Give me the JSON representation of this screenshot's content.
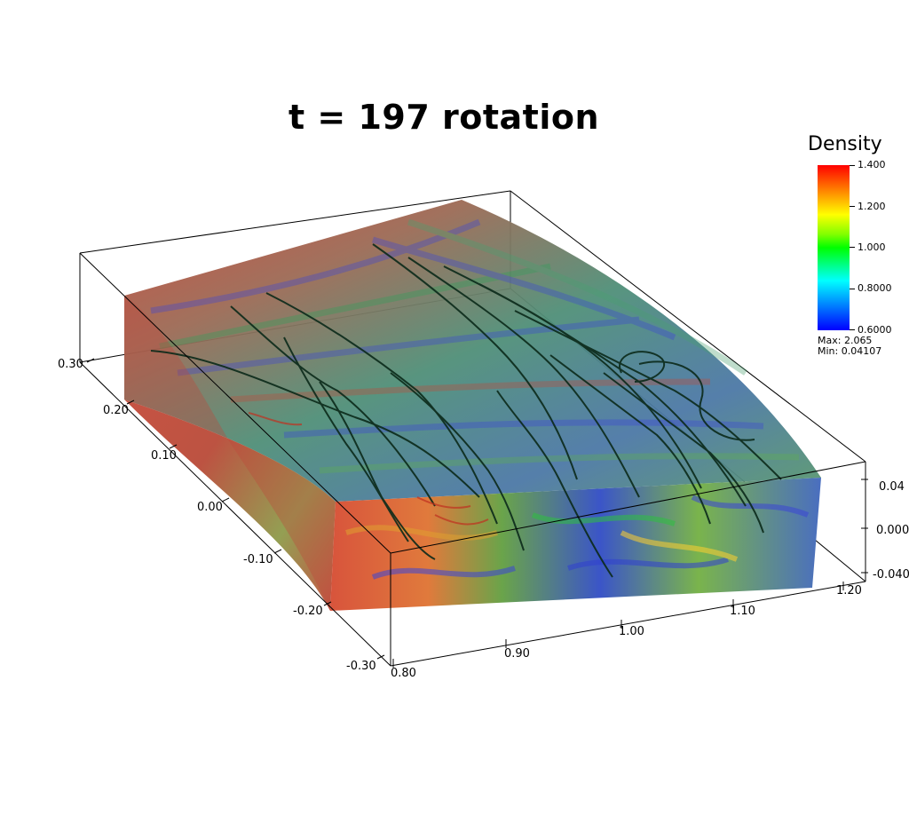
{
  "title": "t = 197 rotation",
  "legend": {
    "title": "Density",
    "ticks": [
      "1.400",
      "1.200",
      "1.000",
      "0.8000",
      "0.6000"
    ],
    "max_label": "Max: 2.065",
    "min_label": "Min: 0.04107"
  },
  "axes": {
    "y_ticks": [
      "0.30",
      "0.20",
      "0.10",
      "0.00",
      "-0.10",
      "-0.20",
      "-0.30"
    ],
    "x_ticks": [
      "0.80",
      "0.90",
      "1.00",
      "1.10",
      "1.20"
    ],
    "z_ticks": [
      "0.04",
      "0.000",
      "-0.040"
    ]
  },
  "colors": {
    "red": "#d63a2c",
    "green": "#4fa34a",
    "blue": "#3b45d6",
    "teal": "#3f9a8e",
    "streamline": "#0b2a1a"
  }
}
